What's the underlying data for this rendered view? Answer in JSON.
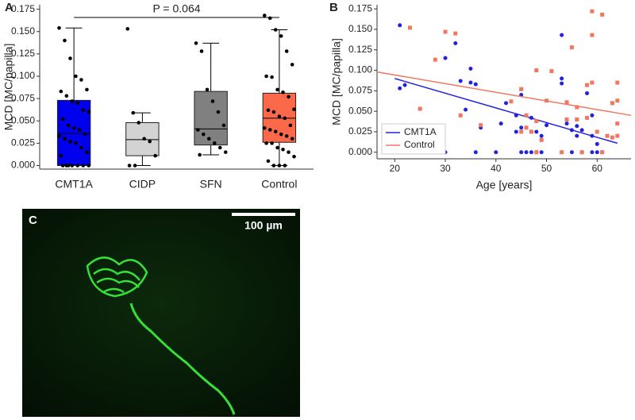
{
  "chart_data": [
    {
      "type": "box",
      "panel": "A",
      "ylabel": "MCD [MC/papilla]",
      "annotation": "P = 0.064",
      "categories": [
        "CMT1A",
        "CIDP",
        "SFN",
        "Control"
      ],
      "ylim": [
        -0.004,
        0.18
      ],
      "yticks": [
        {
          "value": 0,
          "label": "0.000"
        },
        {
          "value": 0.025,
          "label": "0.025"
        },
        {
          "value": 0.05,
          "label": "0.050"
        },
        {
          "value": 0.075,
          "label": "0.075"
        },
        {
          "value": 0.1,
          "label": "0.100"
        },
        {
          "value": 0.125,
          "label": "0.125"
        },
        {
          "value": 0.15,
          "label": "0.150"
        },
        {
          "value": 0.175,
          "label": "0.175"
        }
      ],
      "boxes": [
        {
          "color": "#0000ee",
          "whisker_low": 0,
          "q1": 0,
          "median": 0.036,
          "q3": 0.073,
          "whisker_high": 0.154,
          "points": [
            0.154,
            0.14,
            0.12,
            0.1,
            0.096,
            0.085,
            0.083,
            0.078,
            0.072,
            0.07,
            0.062,
            0.06,
            0.052,
            0.045,
            0.042,
            0.04,
            0.035,
            0.033,
            0.03,
            0.027,
            0.025,
            0.02,
            0.015,
            0.011,
            0,
            0,
            0,
            0,
            0,
            0,
            0
          ]
        },
        {
          "color": "#d3d3d3",
          "whisker_low": 0,
          "q1": 0.011,
          "median": 0.029,
          "q3": 0.048,
          "whisker_high": 0.059,
          "points": [
            0.153,
            0.059,
            0.048,
            0.03,
            0.027,
            0.011,
            0,
            0
          ]
        },
        {
          "color": "#808080",
          "whisker_low": 0.012,
          "q1": 0.023,
          "median": 0.041,
          "q3": 0.083,
          "whisker_high": 0.137,
          "points": [
            0.137,
            0.128,
            0.085,
            0.072,
            0.06,
            0.045,
            0.04,
            0.035,
            0.03,
            0.025,
            0.02,
            0.015,
            0.012
          ]
        },
        {
          "color": "#fa6a4a",
          "whisker_low": 0,
          "q1": 0.026,
          "median": 0.053,
          "q3": 0.081,
          "whisker_high": 0.152,
          "points": [
            0.168,
            0.165,
            0.152,
            0.145,
            0.128,
            0.113,
            0.1,
            0.099,
            0.085,
            0.082,
            0.077,
            0.063,
            0.062,
            0.06,
            0.055,
            0.053,
            0.045,
            0.042,
            0.04,
            0.038,
            0.035,
            0.033,
            0.03,
            0.025,
            0.025,
            0.02,
            0.018,
            0.015,
            0.01,
            0.005,
            0,
            0,
            0
          ]
        }
      ]
    },
    {
      "type": "scatter",
      "panel": "B",
      "xlabel": "Age [years]",
      "ylabel": "MCD [MC/papilla]",
      "xlim": [
        16.5,
        66.7
      ],
      "xticks": [
        20,
        30,
        40,
        50,
        60
      ],
      "ylim": [
        -0.008,
        0.18
      ],
      "yticks": [
        {
          "value": 0,
          "label": "0.000"
        },
        {
          "value": 0.025,
          "label": "0.025"
        },
        {
          "value": 0.05,
          "label": "0.050"
        },
        {
          "value": 0.075,
          "label": "0.075"
        },
        {
          "value": 0.1,
          "label": "0.100"
        },
        {
          "value": 0.125,
          "label": "0.125"
        },
        {
          "value": 0.15,
          "label": "0.150"
        },
        {
          "value": 0.175,
          "label": "0.175"
        }
      ],
      "legend": "lower left",
      "series": [
        {
          "name": "CMT1A",
          "color": "#2222dd",
          "marker": "circle",
          "x": [
            21,
            21,
            22,
            30,
            30,
            32,
            33,
            34,
            35,
            35,
            36,
            36,
            37,
            40,
            41,
            42,
            44,
            44,
            45,
            45,
            45,
            46,
            47,
            47,
            48,
            48,
            49,
            49,
            49,
            50,
            53,
            53,
            53,
            54,
            54,
            55,
            55,
            56,
            56,
            57,
            57,
            58,
            59,
            59,
            59,
            60,
            60,
            61,
            63
          ],
          "values": [
            0.155,
            0.078,
            0.082,
            0,
            0.115,
            0.133,
            0.087,
            0.052,
            0.102,
            0.085,
            0,
            0.083,
            0.03,
            0,
            0.035,
            0.06,
            0.045,
            0.025,
            0.07,
            0.03,
            0,
            0,
            0,
            0.042,
            0,
            0.025,
            0,
            0.015,
            0.02,
            0.033,
            0.143,
            0.09,
            0.084,
            0.035,
            0.04,
            0.027,
            0,
            0.032,
            0.02,
            0,
            0.027,
            0.072,
            0.045,
            0.02,
            0,
            0,
            0.01,
            0,
            0.06
          ],
          "fit_x": [
            20,
            64
          ],
          "fit_values": [
            0.09,
            0.011
          ]
        },
        {
          "name": "Control",
          "color": "#f07860",
          "marker": "square",
          "x": [
            23,
            25,
            28,
            30,
            32,
            33,
            37,
            43,
            45,
            45,
            46,
            46,
            47,
            48,
            48,
            48,
            49,
            50,
            51,
            53,
            54,
            54,
            55,
            56,
            56,
            57,
            58,
            58,
            59,
            59,
            59,
            60,
            61,
            61,
            62,
            63,
            63,
            64,
            64,
            64,
            64
          ],
          "values": [
            0.152,
            0.053,
            0.113,
            0.147,
            0.145,
            0.045,
            0.033,
            0.062,
            0.077,
            0.025,
            0.045,
            0.03,
            0.025,
            0.038,
            0,
            0.1,
            0.015,
            0.063,
            0.099,
            0,
            0.04,
            0.061,
            0.128,
            0.04,
            0.055,
            0,
            0.042,
            0.082,
            0.172,
            0.143,
            0.085,
            0.025,
            0.168,
            0,
            0.02,
            0.06,
            0.018,
            0.063,
            0.085,
            0.035,
            0.02
          ],
          "fit_x": [
            16.5,
            66.7
          ],
          "fit_values": [
            0.098,
            0.045
          ]
        }
      ]
    }
  ],
  "image_panel": {
    "panel": "C",
    "scale_bar": "100 µm"
  }
}
